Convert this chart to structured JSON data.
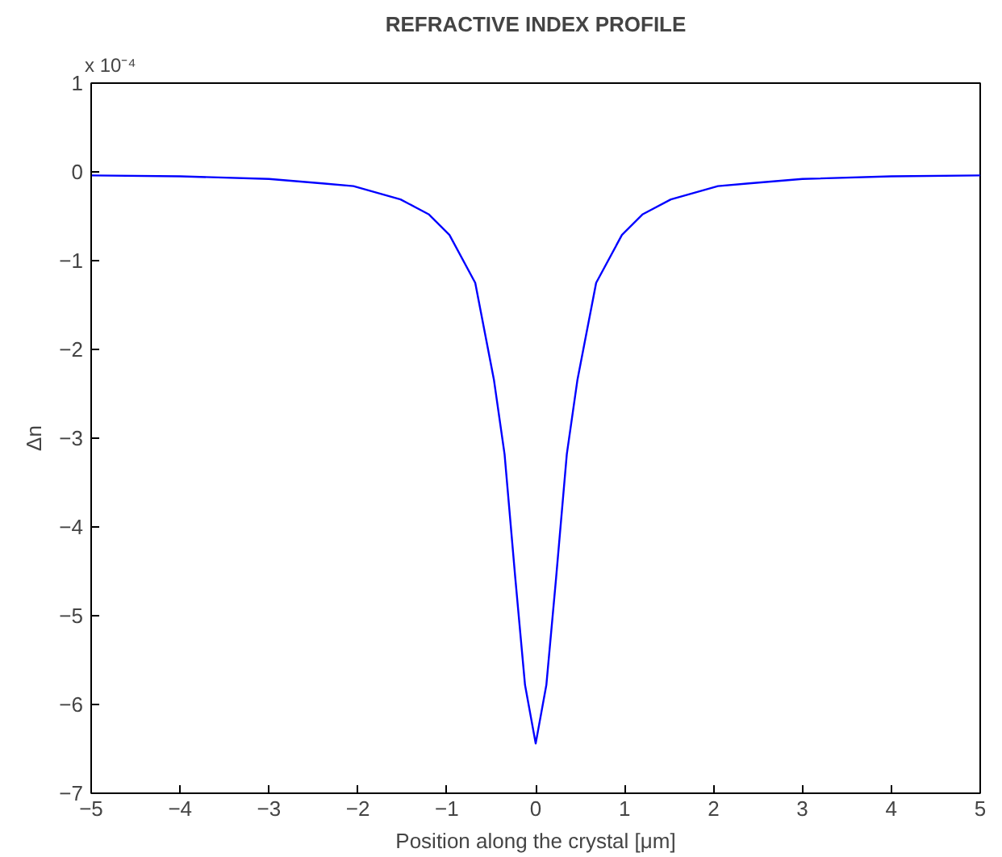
{
  "chart_data": {
    "type": "line",
    "title": "REFRACTIVE INDEX PROFILE",
    "xlabel": "Position along the crystal [μm]",
    "ylabel": "Δn",
    "annotations": [
      "x 10⁻⁴"
    ],
    "x": [
      -5,
      -4,
      -3,
      -2.4,
      -2.05,
      -1.52,
      -1.2,
      -0.97,
      -0.68,
      -0.47,
      -0.35,
      -0.23,
      -0.12,
      0,
      0.12,
      0.23,
      0.35,
      0.47,
      0.68,
      0.97,
      1.2,
      1.52,
      2.05,
      2.4,
      3,
      4,
      5
    ],
    "series": [
      {
        "color": "#0000ff",
        "values": [
          -0.04,
          -0.05,
          -0.08,
          -0.13,
          -0.16,
          -0.31,
          -0.48,
          -0.71,
          -1.25,
          -2.34,
          -3.18,
          -4.57,
          -5.78,
          -6.44,
          -5.78,
          -4.57,
          -3.18,
          -2.34,
          -1.25,
          -0.71,
          -0.48,
          -0.31,
          -0.16,
          -0.13,
          -0.08,
          -0.05,
          -0.04
        ]
      }
    ],
    "xlim": [
      -5,
      5
    ],
    "ylim": [
      -7,
      1
    ],
    "xticks": [
      -5,
      -4,
      -3,
      -2,
      -1,
      0,
      1,
      2,
      3,
      4,
      5
    ],
    "yticks": [
      -7,
      -6,
      -5,
      -4,
      -3,
      -2,
      -1,
      0,
      1
    ],
    "grid": false,
    "marker": "none",
    "line_style": "solid"
  }
}
